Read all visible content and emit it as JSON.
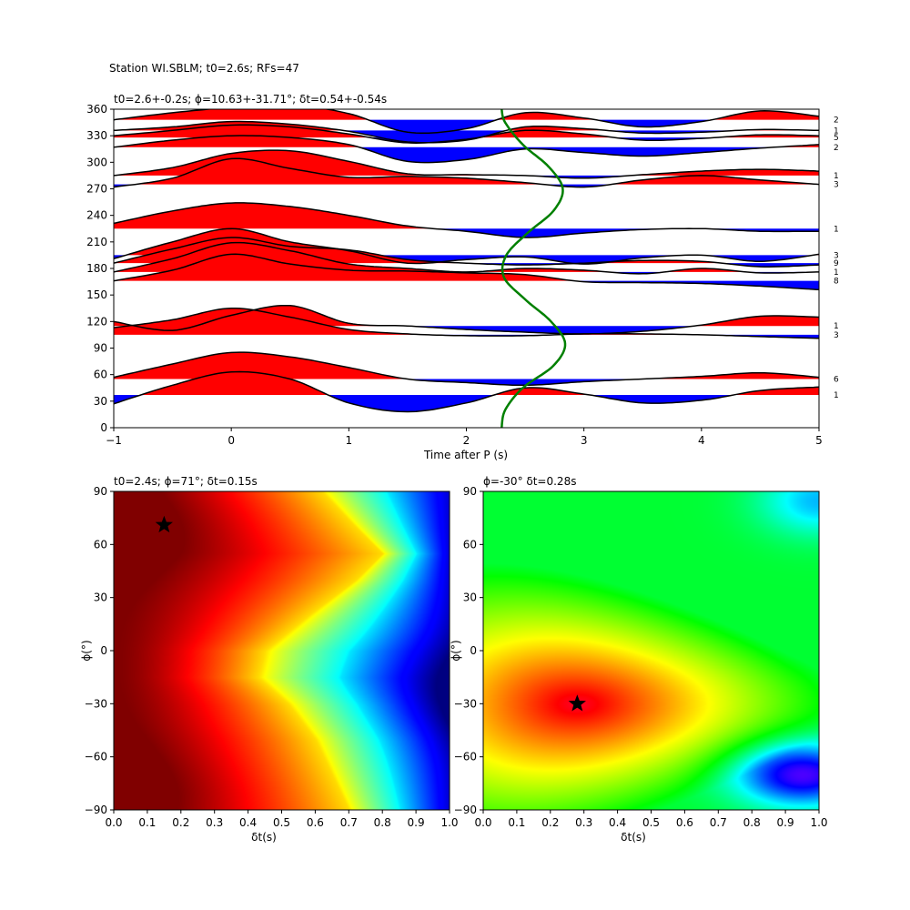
{
  "suptitle": "Station WI.SBLM; t0=2.6s; RFs=47",
  "chart_data": [
    {
      "type": "line",
      "panel": "receiver-functions",
      "title": "t0=2.6+-0.2s; ϕ=10.63+-31.71°; δt=0.54+-0.54s",
      "xlabel": "Time after P (s)",
      "ylabel": "",
      "xlim": [
        -1,
        5
      ],
      "ylim": [
        0,
        360
      ],
      "xticks": [
        -1,
        0,
        1,
        2,
        3,
        4,
        5
      ],
      "yticks": [
        0,
        30,
        60,
        90,
        120,
        150,
        180,
        210,
        240,
        270,
        300,
        330,
        360
      ],
      "positive_fill": "#ff0000",
      "negative_fill": "#0000ff",
      "curve_color": "#008000",
      "traces": [
        {
          "baseline": 348,
          "count": "2",
          "points": [
            [
              -1,
              348
            ],
            [
              -0.5,
              356
            ],
            [
              0,
              362
            ],
            [
              0.5,
              365
            ],
            [
              1,
              355
            ],
            [
              1.5,
              334
            ],
            [
              2,
              338
            ],
            [
              2.5,
              356
            ],
            [
              3,
              350
            ],
            [
              3.5,
              340
            ],
            [
              4,
              346
            ],
            [
              4.5,
              358
            ],
            [
              5,
              352
            ]
          ]
        },
        {
          "baseline": 336,
          "count": "1",
          "points": [
            [
              -1,
              336
            ],
            [
              -0.5,
              340
            ],
            [
              0,
              346
            ],
            [
              0.5,
              343
            ],
            [
              1,
              335
            ],
            [
              1.5,
              323
            ],
            [
              2,
              325
            ],
            [
              2.5,
              340
            ],
            [
              3,
              338
            ],
            [
              3.5,
              333
            ],
            [
              4,
              334
            ],
            [
              4.5,
              337
            ],
            [
              5,
              336
            ]
          ]
        },
        {
          "baseline": 328,
          "count": "5",
          "points": [
            [
              -1,
              330
            ],
            [
              -0.5,
              336
            ],
            [
              0,
              342
            ],
            [
              0.5,
              340
            ],
            [
              1,
              332
            ],
            [
              1.5,
              322
            ],
            [
              2,
              326
            ],
            [
              2.5,
              336
            ],
            [
              3,
              332
            ],
            [
              3.5,
              325
            ],
            [
              4,
              327
            ],
            [
              4.5,
              331
            ],
            [
              5,
              330
            ]
          ]
        },
        {
          "baseline": 317,
          "count": "2",
          "points": [
            [
              -1,
              317
            ],
            [
              -0.5,
              325
            ],
            [
              0,
              330
            ],
            [
              0.5,
              328
            ],
            [
              1,
              320
            ],
            [
              1.5,
              301
            ],
            [
              2,
              303
            ],
            [
              2.5,
              315
            ],
            [
              3,
              311
            ],
            [
              3.5,
              307
            ],
            [
              4,
              311
            ],
            [
              4.5,
              316
            ],
            [
              5,
              320
            ]
          ]
        },
        {
          "baseline": 285,
          "count": "1",
          "points": [
            [
              -1,
              285
            ],
            [
              -0.5,
              294
            ],
            [
              0,
              310
            ],
            [
              0.5,
              313
            ],
            [
              1,
              301
            ],
            [
              1.5,
              287
            ],
            [
              2,
              286
            ],
            [
              2.5,
              285
            ],
            [
              3,
              282
            ],
            [
              3.5,
              286
            ],
            [
              4,
              290
            ],
            [
              4.5,
              292
            ],
            [
              5,
              290
            ]
          ]
        },
        {
          "baseline": 275,
          "count": "3",
          "points": [
            [
              -1,
              272
            ],
            [
              -0.5,
              282
            ],
            [
              0,
              304
            ],
            [
              0.5,
              293
            ],
            [
              1,
              283
            ],
            [
              1.5,
              284
            ],
            [
              2,
              282
            ],
            [
              2.5,
              277
            ],
            [
              3,
              272
            ],
            [
              3.5,
              280
            ],
            [
              4,
              285
            ],
            [
              4.5,
              280
            ],
            [
              5,
              275
            ]
          ]
        },
        {
          "baseline": 225,
          "count": "1",
          "points": [
            [
              -1,
              231
            ],
            [
              -0.5,
              245
            ],
            [
              0,
              254
            ],
            [
              0.5,
              250
            ],
            [
              1,
              240
            ],
            [
              1.5,
              228
            ],
            [
              2,
              222
            ],
            [
              2.5,
              215
            ],
            [
              3,
              220
            ],
            [
              3.5,
              224
            ],
            [
              4,
              225
            ],
            [
              4.5,
              222
            ],
            [
              5,
              222
            ]
          ]
        },
        {
          "baseline": 195,
          "count": "3",
          "points": [
            [
              -1,
              191
            ],
            [
              -0.5,
              210
            ],
            [
              0,
              225
            ],
            [
              0.5,
              210
            ],
            [
              1,
              200
            ],
            [
              1.5,
              186
            ],
            [
              2,
              190
            ],
            [
              2.5,
              193
            ],
            [
              3,
              185
            ],
            [
              3.5,
              192
            ],
            [
              4,
              195
            ],
            [
              4.5,
              188
            ],
            [
              5,
              196
            ]
          ]
        },
        {
          "baseline": 186,
          "count": "9",
          "points": [
            [
              -1,
              186
            ],
            [
              -0.5,
              202
            ],
            [
              0,
              215
            ],
            [
              0.5,
              205
            ],
            [
              1,
              201
            ],
            [
              1.5,
              190
            ],
            [
              2,
              186
            ],
            [
              2.5,
              184
            ],
            [
              3,
              186
            ],
            [
              3.5,
              189
            ],
            [
              4,
              188
            ],
            [
              4.5,
              182
            ],
            [
              5,
              184
            ]
          ]
        },
        {
          "baseline": 176,
          "count": "1",
          "points": [
            [
              -1,
              176
            ],
            [
              -0.5,
              191
            ],
            [
              0,
              209
            ],
            [
              0.5,
              200
            ],
            [
              1,
              185
            ],
            [
              1.5,
              180
            ],
            [
              2,
              176
            ],
            [
              2.5,
              180
            ],
            [
              3,
              178
            ],
            [
              3.5,
              174
            ],
            [
              4,
              180
            ],
            [
              4.5,
              175
            ],
            [
              5,
              176
            ]
          ]
        },
        {
          "baseline": 166,
          "count": "8",
          "points": [
            [
              -1,
              166
            ],
            [
              -0.5,
              178
            ],
            [
              0,
              196
            ],
            [
              0.5,
              185
            ],
            [
              1,
              178
            ],
            [
              1.5,
              177
            ],
            [
              2,
              175
            ],
            [
              2.5,
              173
            ],
            [
              3,
              165
            ],
            [
              3.5,
              164
            ],
            [
              4,
              163
            ],
            [
              4.5,
              160
            ],
            [
              5,
              156
            ]
          ]
        },
        {
          "baseline": 115,
          "count": "1",
          "points": [
            [
              -1,
              120
            ],
            [
              -0.5,
              110
            ],
            [
              0,
              127
            ],
            [
              0.5,
              138
            ],
            [
              1,
              118
            ],
            [
              1.5,
              115
            ],
            [
              2,
              111
            ],
            [
              2.5,
              108
            ],
            [
              3,
              106
            ],
            [
              3.5,
              109
            ],
            [
              4,
              116
            ],
            [
              4.5,
              126
            ],
            [
              5,
              125
            ]
          ]
        },
        {
          "baseline": 105,
          "count": "3",
          "points": [
            [
              -1,
              113
            ],
            [
              -0.5,
              122
            ],
            [
              0,
              135
            ],
            [
              0.5,
              125
            ],
            [
              1,
              111
            ],
            [
              1.5,
              106
            ],
            [
              2,
              104
            ],
            [
              2.5,
              104
            ],
            [
              3,
              106
            ],
            [
              3.5,
              106
            ],
            [
              4,
              105
            ],
            [
              4.5,
              103
            ],
            [
              5,
              101
            ]
          ]
        },
        {
          "baseline": 55,
          "count": "6",
          "points": [
            [
              -1,
              57
            ],
            [
              -0.5,
              72
            ],
            [
              0,
              85
            ],
            [
              0.5,
              80
            ],
            [
              1,
              68
            ],
            [
              1.5,
              55
            ],
            [
              2,
              51
            ],
            [
              2.5,
              48
            ],
            [
              3,
              52
            ],
            [
              3.5,
              55
            ],
            [
              4,
              58
            ],
            [
              4.5,
              62
            ],
            [
              5,
              57
            ]
          ]
        },
        {
          "baseline": 37,
          "count": "1",
          "points": [
            [
              -1,
              27
            ],
            [
              -0.5,
              48
            ],
            [
              0,
              63
            ],
            [
              0.5,
              55
            ],
            [
              1,
              28
            ],
            [
              1.5,
              18
            ],
            [
              2,
              28
            ],
            [
              2.5,
              45
            ],
            [
              3,
              38
            ],
            [
              3.5,
              28
            ],
            [
              4,
              31
            ],
            [
              4.5,
              42
            ],
            [
              5,
              46
            ]
          ]
        }
      ],
      "curve": [
        [
          2.3,
          0
        ],
        [
          2.33,
          20
        ],
        [
          2.48,
          45
        ],
        [
          2.74,
          70
        ],
        [
          2.84,
          95
        ],
        [
          2.72,
          120
        ],
        [
          2.5,
          145
        ],
        [
          2.32,
          170
        ],
        [
          2.34,
          195
        ],
        [
          2.52,
          220
        ],
        [
          2.74,
          245
        ],
        [
          2.82,
          270
        ],
        [
          2.7,
          295
        ],
        [
          2.48,
          320
        ],
        [
          2.33,
          345
        ],
        [
          2.3,
          360
        ]
      ]
    },
    {
      "type": "heatmap",
      "panel": "grid-search-left",
      "title": "t0=2.4s; ϕ=71°; δt=0.15s",
      "xlabel": "δt(s)",
      "ylabel": "ϕ(°)",
      "xlim": [
        0,
        1
      ],
      "ylim": [
        -90,
        90
      ],
      "xticks": [
        "0.0",
        "0.1",
        "0.2",
        "0.3",
        "0.4",
        "0.5",
        "0.6",
        "0.7",
        "0.8",
        "0.9",
        "1.0"
      ],
      "yticks": [
        -90,
        -60,
        -30,
        0,
        30,
        60,
        90
      ],
      "colormap": "jet",
      "marker": {
        "dt": 0.15,
        "phi": 71,
        "symbol": "star"
      },
      "ridge_dt_by_phi": [
        [
          -90,
          0.7
        ],
        [
          -70,
          0.65
        ],
        [
          -50,
          0.6
        ],
        [
          -30,
          0.52
        ],
        [
          -15,
          0.43
        ],
        [
          0,
          0.45
        ],
        [
          20,
          0.58
        ],
        [
          40,
          0.72
        ],
        [
          55,
          0.8
        ],
        [
          70,
          0.72
        ],
        [
          90,
          0.62
        ]
      ]
    },
    {
      "type": "heatmap",
      "panel": "grid-search-right",
      "title": "ϕ=-30° δt=0.28s",
      "xlabel": "δt(s)",
      "ylabel": "ϕ(°)",
      "xlim": [
        0,
        1
      ],
      "ylim": [
        -90,
        90
      ],
      "xticks": [
        "0.0",
        "0.1",
        "0.2",
        "0.3",
        "0.4",
        "0.5",
        "0.6",
        "0.7",
        "0.8",
        "0.9",
        "1.0"
      ],
      "yticks": [
        -90,
        -60,
        -30,
        0,
        30,
        60,
        90
      ],
      "colormap": "hsv",
      "marker": {
        "dt": 0.28,
        "phi": -30,
        "symbol": "star"
      }
    }
  ]
}
